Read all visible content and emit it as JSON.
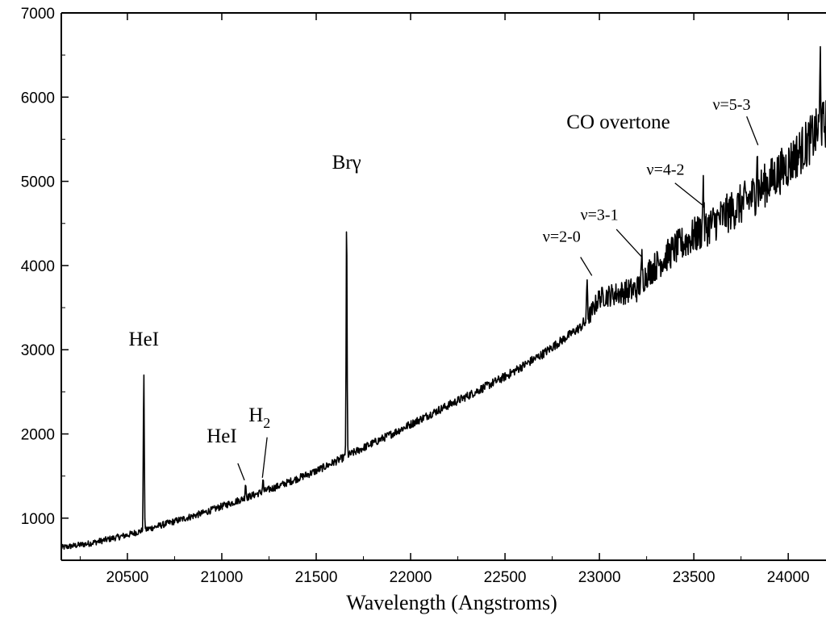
{
  "chart_data": {
    "type": "line",
    "xlabel": "Wavelength (Angstroms)",
    "ylabel": "",
    "xlim": [
      20150,
      24200
    ],
    "ylim": [
      500,
      7000
    ],
    "x_ticks": [
      20500,
      21000,
      21500,
      22000,
      22500,
      23000,
      23500,
      24000
    ],
    "y_ticks": [
      1000,
      2000,
      3000,
      4000,
      5000,
      6000,
      7000
    ],
    "grid": false,
    "series": [
      {
        "line_color": "#000000",
        "continuum": {
          "x": [
            20150,
            20300,
            20500,
            20700,
            20900,
            21100,
            21300,
            21500,
            21700,
            21900,
            22100,
            22300,
            22500,
            22700,
            22900,
            22935,
            23000,
            23200,
            23250,
            23400,
            23600,
            23800,
            24000,
            24200
          ],
          "y": [
            650,
            700,
            800,
            930,
            1060,
            1220,
            1380,
            1560,
            1780,
            2000,
            2230,
            2450,
            2680,
            2950,
            3270,
            3350,
            3620,
            3720,
            3900,
            4200,
            4500,
            4800,
            5200,
            5700
          ]
        },
        "emission_lines": [
          {
            "x": 20587,
            "y": 2700
          },
          {
            "x": 21126,
            "y": 1420
          },
          {
            "x": 21218,
            "y": 1460
          },
          {
            "x": 21661,
            "y": 4580
          },
          {
            "x": 22935,
            "y": 3850
          },
          {
            "x": 23225,
            "y": 4080
          },
          {
            "x": 23550,
            "y": 5100
          },
          {
            "x": 23835,
            "y": 5400
          },
          {
            "x": 24170,
            "y": 6500
          }
        ],
        "noise_amplitude": {
          "x": [
            20150,
            22900,
            22935,
            23200,
            23500,
            24200
          ],
          "amp": [
            35,
            55,
            110,
            160,
            220,
            300
          ]
        }
      }
    ]
  },
  "annotations": {
    "hei_1": {
      "text": "HeI",
      "x": 20587,
      "y": 3050
    },
    "hei_2": {
      "text": "HeI",
      "x": 21000,
      "y": 1900
    },
    "h2": {
      "text": "H",
      "sub": "2",
      "x": 21200,
      "y": 2150
    },
    "brg": {
      "text": "Brγ",
      "x": 21661,
      "y": 5150
    },
    "co": {
      "text": "CO overtone",
      "x": 23100,
      "y": 5630
    },
    "v20": {
      "text": "ν=2-0",
      "x": 22800,
      "y": 4280
    },
    "v31": {
      "text": "ν=3-1",
      "x": 23000,
      "y": 4540
    },
    "v42": {
      "text": "ν=4-2",
      "x": 23350,
      "y": 5080
    },
    "v53": {
      "text": "ν=5-3",
      "x": 23700,
      "y": 5850
    }
  }
}
